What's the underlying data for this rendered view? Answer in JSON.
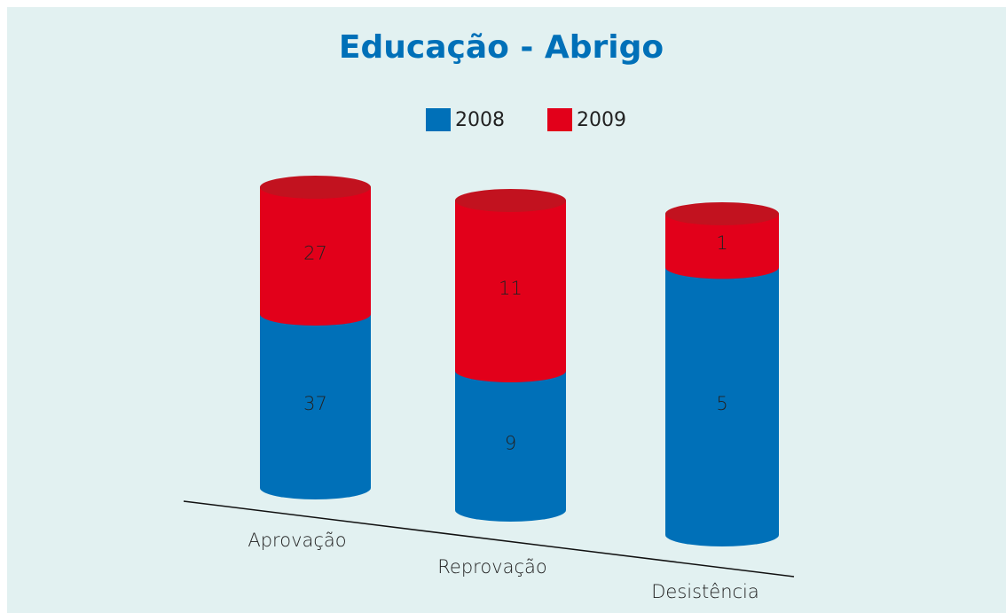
{
  "chart_data": {
    "type": "bar",
    "stacked": "percent",
    "title": "Educação - Abrigo",
    "categories": [
      "Aprovação",
      "Reprovação",
      "Desistência"
    ],
    "series": [
      {
        "name": "2008",
        "color": "#0070b8",
        "values": [
          37,
          9,
          5
        ]
      },
      {
        "name": "2009",
        "color": "#e2001a",
        "values": [
          27,
          11,
          1
        ]
      }
    ],
    "legend": "top"
  }
}
